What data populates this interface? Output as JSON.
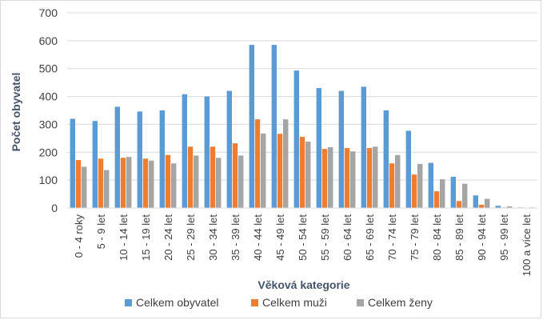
{
  "chart_data": {
    "type": "bar",
    "title": "",
    "xlabel": "Věková kategorie",
    "ylabel": "Počet obyvatel",
    "ylim": [
      0,
      700
    ],
    "yticks": [
      0,
      100,
      200,
      300,
      400,
      500,
      600,
      700
    ],
    "grid": true,
    "legend_position": "bottom",
    "categories": [
      "0 - 4 roky",
      "5 - 9 let",
      "10 - 14 let",
      "15 - 19 let",
      "20 - 24 let",
      "25 - 29 let",
      "30 - 34 let",
      "35 - 39 let",
      "40 - 44 let",
      "45 - 49 let",
      "50 - 54 let",
      "55 - 59 let",
      "60 - 64 let",
      "65 - 69 let",
      "70 - 74 let",
      "75 - 79 let",
      "80 - 84 let",
      "85 - 89 let",
      "90 - 94 let",
      "95 - 99 let",
      "100 a více let"
    ],
    "series": [
      {
        "name": "Celkem obyvatel",
        "color": "#5b9bd5",
        "values": [
          320,
          312,
          363,
          346,
          350,
          408,
          400,
          420,
          585,
          585,
          493,
          430,
          420,
          435,
          350,
          277,
          162,
          112,
          45,
          8,
          2
        ]
      },
      {
        "name": "Celkem muži",
        "color": "#ed7d31",
        "values": [
          172,
          177,
          180,
          177,
          190,
          220,
          220,
          232,
          318,
          266,
          255,
          212,
          215,
          215,
          160,
          120,
          60,
          25,
          12,
          2,
          0
        ]
      },
      {
        "name": "Celkem ženy",
        "color": "#a5a5a5",
        "values": [
          148,
          136,
          183,
          170,
          160,
          188,
          180,
          188,
          267,
          318,
          238,
          218,
          203,
          220,
          190,
          158,
          103,
          87,
          33,
          6,
          2
        ]
      }
    ]
  }
}
